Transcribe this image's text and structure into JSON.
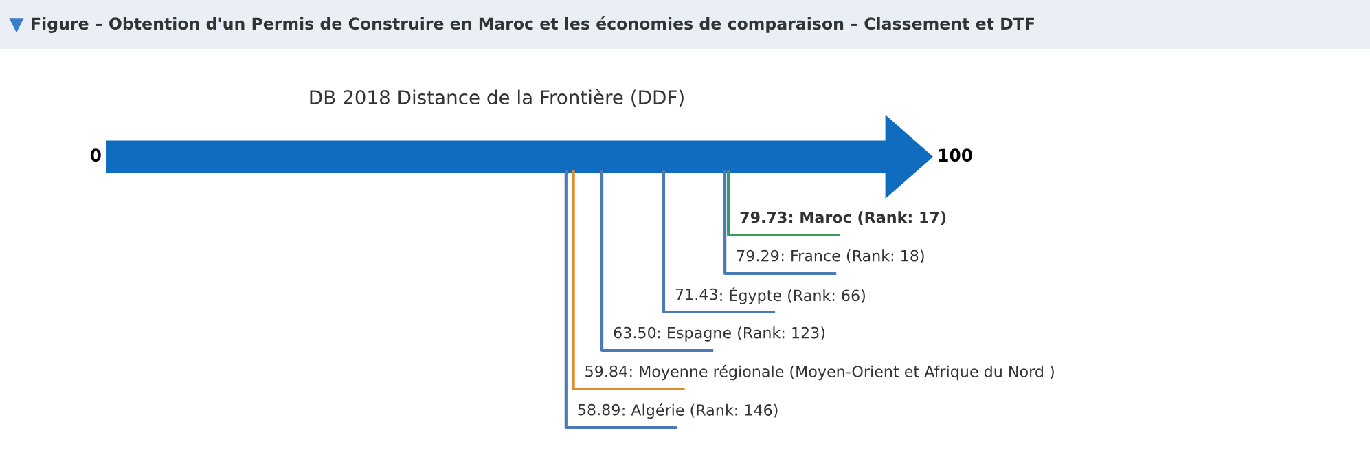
{
  "chart_data": {
    "type": "other",
    "title": "Figure – Obtention d'un Permis de Construire en Maroc et les économies de comparaison – Classement et DTF",
    "subtitle": "DB 2018 Distance de la Frontière (DDF)",
    "annotations": [
      "0",
      "100"
    ],
    "categories": [
      ": Maroc (Rank: 17)",
      ": France (Rank: 18)",
      ": Égypte (Rank: 66)",
      ": Espagne (Rank: 123)",
      ": Moyenne régionale (Moyen-Orient et Afrique du Nord )",
      ": Algérie (Rank: 146)"
    ],
    "value_labels": [
      "79.73",
      "79.29",
      "71.43",
      "63.50",
      "59.84",
      "58.89"
    ],
    "values": [
      79.73,
      79.29,
      71.43,
      63.5,
      59.84,
      58.89
    ],
    "colors": [
      "#3a9a5c",
      "#4a7bb7",
      "#4a7bb7",
      "#4a7bb7",
      "#e08a2b",
      "#4a7bb7"
    ],
    "color": "#0f6cbf"
  }
}
